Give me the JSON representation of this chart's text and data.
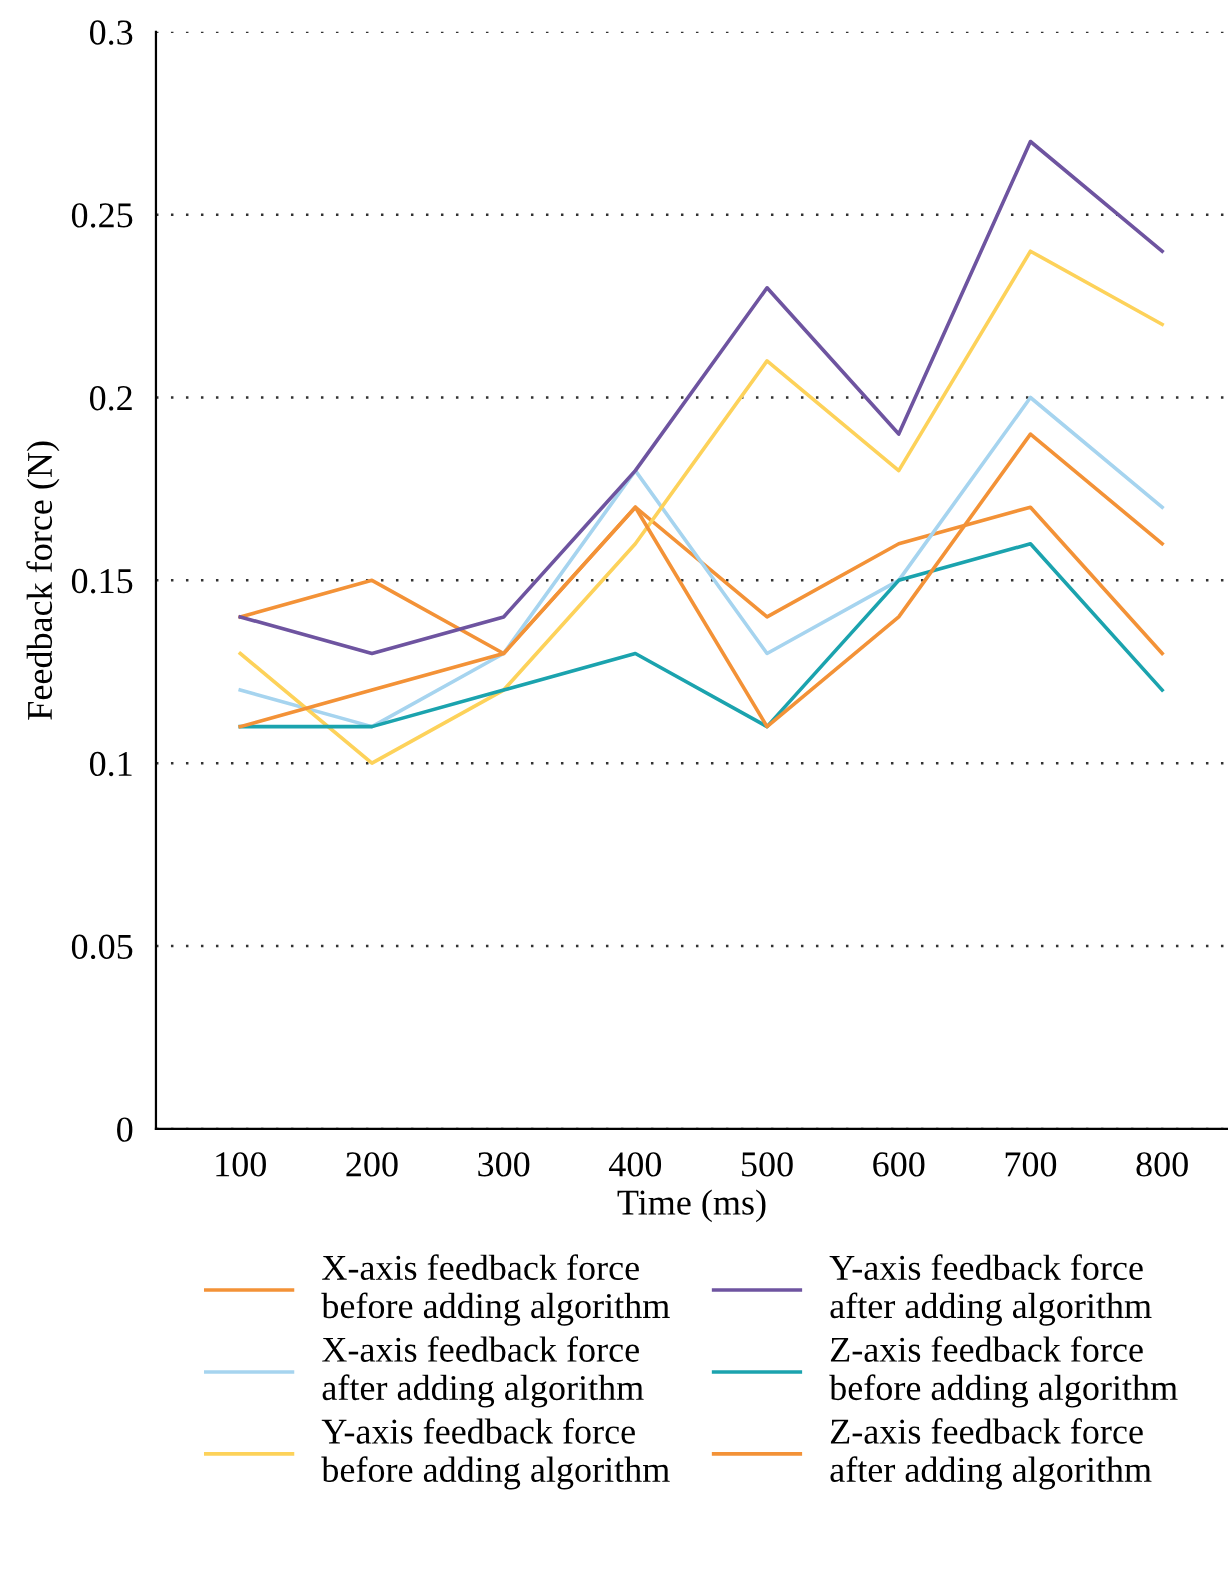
{
  "chart_data": {
    "type": "line",
    "xlabel": "Time (ms)",
    "ylabel": "Feedback force (N)",
    "x": [
      100,
      200,
      300,
      400,
      500,
      600,
      700,
      800
    ],
    "xlim": [
      36,
      850
    ],
    "xticks": [
      100,
      200,
      300,
      400,
      500,
      600,
      700,
      800
    ],
    "ylim": [
      0,
      0.3
    ],
    "yticks": [
      0,
      0.05,
      0.1,
      0.15,
      0.2,
      0.25,
      0.3
    ],
    "grid": "y",
    "legend": "bottom",
    "marker": "none",
    "line_style": "solid",
    "series": [
      {
        "name": "X-axis feedback force\nbefore adding algorithm",
        "color": "#f39237",
        "values": [
          0.14,
          0.15,
          0.13,
          0.17,
          0.14,
          0.16,
          0.17,
          0.13
        ]
      },
      {
        "name": "X-axis feedback force\nafter adding algorithm",
        "color": "#a6d4ef",
        "values": [
          0.12,
          0.11,
          0.13,
          0.18,
          0.13,
          0.15,
          0.2,
          0.17
        ]
      },
      {
        "name": "Y-axis feedback force\nbefore adding algorithm",
        "color": "#fdd25a",
        "values": [
          0.13,
          0.1,
          0.12,
          0.16,
          0.21,
          0.18,
          0.24,
          0.22
        ]
      },
      {
        "name": "Y-axis feedback force\nafter adding algorithm",
        "color": "#6e54a0",
        "values": [
          0.14,
          0.13,
          0.14,
          0.18,
          0.23,
          0.19,
          0.27,
          0.24
        ]
      },
      {
        "name": "Z-axis feedback force\nbefore adding algorithm",
        "color": "#1ba3ae",
        "values": [
          0.11,
          0.11,
          0.12,
          0.13,
          0.11,
          0.15,
          0.16,
          0.12
        ]
      },
      {
        "name": "Z-axis feedback force\nafter adding algorithm",
        "color": "#f39237",
        "values": [
          0.11,
          0.12,
          0.13,
          0.17,
          0.11,
          0.14,
          0.19,
          0.16
        ]
      }
    ]
  }
}
